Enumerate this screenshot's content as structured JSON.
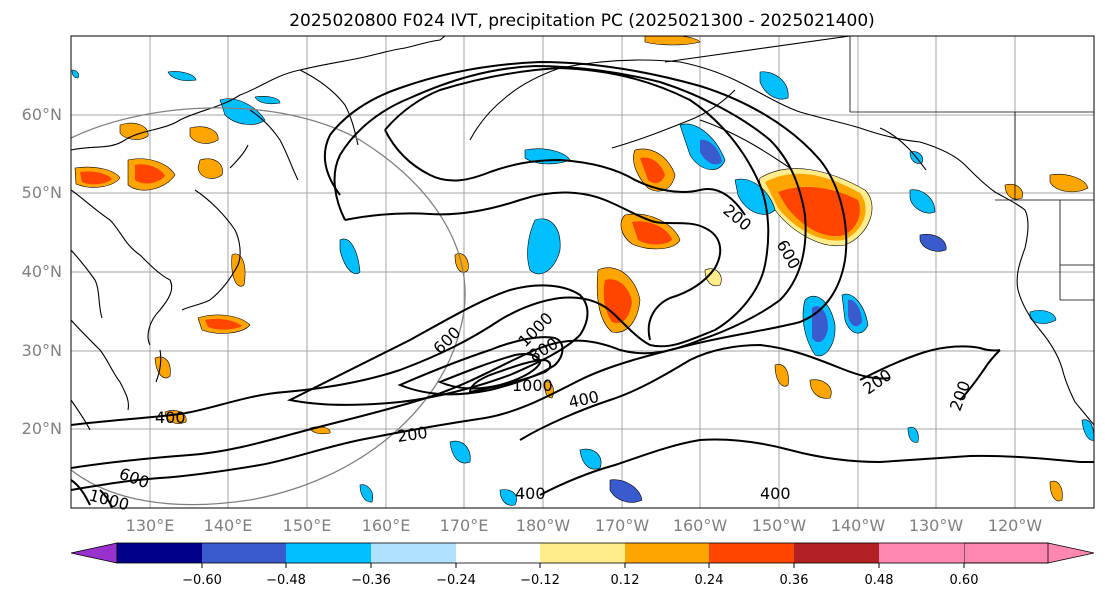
{
  "title": "2025020800 F024 IVT, precipitation PC (2025021300 - 2025021400)",
  "lat_labels": [
    "60°N",
    "50°N",
    "40°N",
    "30°N",
    "20°N"
  ],
  "lon_labels": [
    "130°E",
    "140°E",
    "150°E",
    "160°E",
    "170°E",
    "180°W",
    "170°W",
    "160°W",
    "150°W",
    "140°W",
    "130°W",
    "120°W"
  ],
  "ivt_contour_labels": [
    "200",
    "600",
    "600",
    "1000",
    "800",
    "1000",
    "400",
    "400",
    "200",
    "200",
    "200",
    "400",
    "400",
    "600",
    "1000"
  ],
  "colorbar": {
    "colors": [
      "#9932cc",
      "#00008b",
      "#3a5bcd",
      "#00bfff",
      "#b0e2ff",
      "#ffffff",
      "#ffec8b",
      "#ffa500",
      "#ff4500",
      "#b22222",
      "#ff88b2"
    ],
    "tick_labels": [
      "−0.60",
      "−0.48",
      "−0.36",
      "−0.24",
      "−0.12",
      "0.12",
      "0.24",
      "0.36",
      "0.48",
      "0.60"
    ]
  }
}
